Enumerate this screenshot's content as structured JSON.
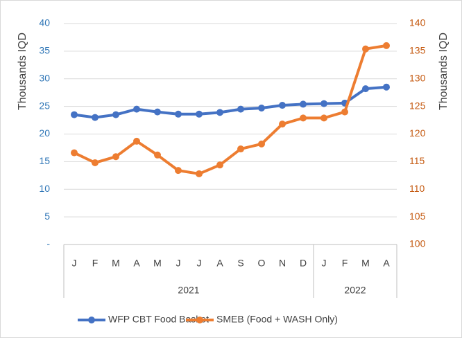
{
  "chart_data": {
    "type": "line",
    "ylabel": "Thousands IQD",
    "y2label": "Thousands IQD",
    "categories": [
      "J",
      "F",
      "M",
      "A",
      "M",
      "J",
      "J",
      "A",
      "S",
      "O",
      "N",
      "D",
      "J",
      "F",
      "M",
      "A"
    ],
    "group_labels": [
      "2021",
      "2022"
    ],
    "group_sizes": [
      12,
      4
    ],
    "series": [
      {
        "name": "WFP CBT Food Basket",
        "color": "#4472c4",
        "axis": "y",
        "values": [
          23.5,
          23.0,
          23.5,
          24.5,
          24.0,
          23.6,
          23.6,
          23.9,
          24.5,
          24.7,
          25.2,
          25.4,
          25.5,
          25.6,
          28.2,
          28.5
        ]
      },
      {
        "name": "SMEB (Food + WASH Only)",
        "color": "#ed7d31",
        "axis": "y2",
        "values": [
          116.6,
          114.8,
          115.9,
          118.7,
          116.2,
          113.4,
          112.8,
          114.4,
          117.3,
          118.2,
          121.8,
          122.9,
          122.9,
          124.0,
          135.4,
          136.0
        ]
      }
    ],
    "ylim": [
      0,
      40
    ],
    "yticks": [
      {
        "value": 0,
        "label": "-"
      },
      5,
      10,
      15,
      20,
      25,
      30,
      35,
      40
    ],
    "y2lim": [
      100,
      140
    ],
    "y2ticks": [
      100,
      105,
      110,
      115,
      120,
      125,
      130,
      135,
      140
    ],
    "grid": true,
    "legend": "bottom"
  }
}
